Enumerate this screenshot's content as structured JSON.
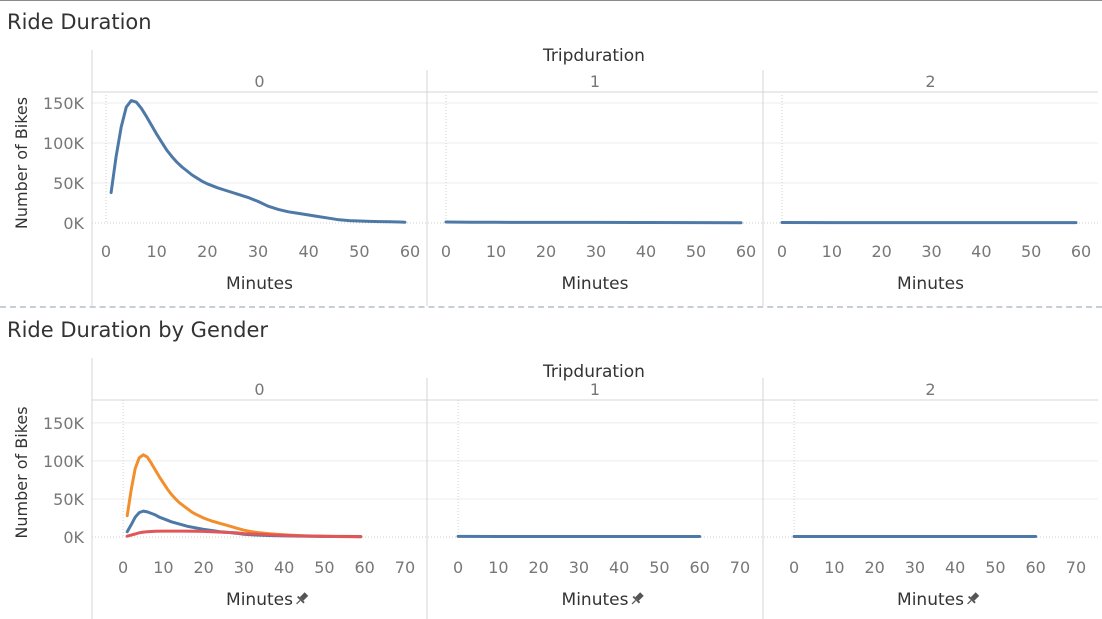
{
  "dashboard": {
    "sections": [
      {
        "title": "Ride Duration",
        "header_label": "Tripduration",
        "panel_labels": [
          "0",
          "1",
          "2"
        ],
        "xlabel": "Minutes",
        "ylabel": "Number of Bikes"
      },
      {
        "title": "Ride Duration by Gender",
        "header_label": "Tripduration",
        "panel_labels": [
          "0",
          "1",
          "2"
        ],
        "xlabel": "Minutes",
        "ylabel": "Number of Bikes",
        "pin_icon": "pin-icon"
      }
    ]
  },
  "chart_data": [
    {
      "type": "line",
      "title": "Ride Duration",
      "xlabel": "Minutes",
      "ylabel": "Number of Bikes",
      "facet_label": "Tripduration",
      "xlim": [
        0,
        60
      ],
      "ylim": [
        0,
        160000
      ],
      "x_ticks": [
        0,
        10,
        20,
        30,
        40,
        50,
        60
      ],
      "x_tick_labels": [
        "0",
        "10",
        "20",
        "30",
        "40",
        "50",
        "60"
      ],
      "y_ticks": [
        0,
        50000,
        100000,
        150000
      ],
      "y_tick_labels": [
        "0K",
        "50K",
        "100K",
        "150K"
      ],
      "grid": true,
      "facets": [
        {
          "label": "0",
          "series": [
            {
              "color": "#4e79a7",
              "x": [
                1,
                2,
                3,
                4,
                5,
                6,
                7,
                8,
                9,
                10,
                11,
                12,
                13,
                14,
                15,
                16,
                17,
                18,
                19,
                20,
                22,
                24,
                26,
                28,
                30,
                32,
                34,
                36,
                38,
                40,
                42,
                44,
                46,
                48,
                50,
                52,
                54,
                56,
                58,
                59
              ],
              "y": [
                38000,
                83000,
                120000,
                145000,
                153000,
                151000,
                143000,
                133000,
                122000,
                111000,
                101000,
                91000,
                83000,
                76000,
                70000,
                65000,
                60000,
                56000,
                52000,
                49000,
                44000,
                40000,
                36000,
                32000,
                27000,
                21000,
                17000,
                14000,
                12000,
                10000,
                8000,
                6000,
                4000,
                3000,
                2500,
                2000,
                1800,
                1500,
                1200,
                1000
              ]
            }
          ]
        },
        {
          "label": "1",
          "series": [
            {
              "color": "#4e79a7",
              "x": [
                0,
                5,
                10,
                20,
                30,
                40,
                50,
                59
              ],
              "y": [
                1200,
                1000,
                900,
                800,
                700,
                600,
                500,
                400
              ]
            }
          ]
        },
        {
          "label": "2",
          "series": [
            {
              "color": "#4e79a7",
              "x": [
                0,
                10,
                20,
                30,
                40,
                50,
                59
              ],
              "y": [
                600,
                500,
                500,
                500,
                500,
                500,
                500
              ]
            }
          ]
        }
      ]
    },
    {
      "type": "line",
      "title": "Ride Duration by Gender",
      "xlabel": "Minutes",
      "ylabel": "Number of Bikes",
      "facet_label": "Tripduration",
      "xlim": [
        -5,
        72
      ],
      "ylim": [
        0,
        180000
      ],
      "x_ticks": [
        0,
        10,
        20,
        30,
        40,
        50,
        60,
        70
      ],
      "x_tick_labels": [
        "0",
        "10",
        "20",
        "30",
        "40",
        "50",
        "60",
        "70"
      ],
      "y_ticks": [
        0,
        50000,
        100000,
        150000
      ],
      "y_tick_labels": [
        "0K",
        "50K",
        "100K",
        "150K"
      ],
      "grid": true,
      "facets": [
        {
          "label": "0",
          "series": [
            {
              "color": "#f28e2b",
              "x": [
                1,
                2,
                3,
                4,
                5,
                6,
                7,
                8,
                9,
                10,
                11,
                12,
                13,
                14,
                15,
                16,
                17,
                18,
                20,
                22,
                24,
                26,
                28,
                30,
                32,
                34,
                36,
                38,
                40,
                42,
                44,
                46,
                48,
                50,
                55,
                59
              ],
              "y": [
                28000,
                62000,
                90000,
                104000,
                108000,
                105000,
                97000,
                88000,
                79000,
                71000,
                63000,
                56000,
                50000,
                45000,
                41000,
                37000,
                33000,
                30000,
                25000,
                21000,
                18000,
                15000,
                12000,
                9000,
                7000,
                5500,
                4500,
                3500,
                3000,
                2400,
                1900,
                1500,
                1200,
                1000,
                800,
                700
              ]
            },
            {
              "color": "#4e79a7",
              "x": [
                1,
                2,
                3,
                4,
                5,
                6,
                7,
                8,
                9,
                10,
                12,
                14,
                16,
                18,
                20,
                22,
                24,
                26,
                28,
                30,
                33,
                36,
                40,
                44,
                48,
                52,
                56,
                59
              ],
              "y": [
                7000,
                16000,
                26000,
                32000,
                34000,
                33000,
                31000,
                29000,
                26000,
                24000,
                20000,
                17000,
                14000,
                12000,
                10000,
                8500,
                7000,
                6000,
                5000,
                3500,
                2600,
                2000,
                1500,
                1200,
                900,
                700,
                600,
                500
              ]
            },
            {
              "color": "#e15759",
              "x": [
                1,
                2,
                3,
                4,
                5,
                6,
                8,
                10,
                12,
                15,
                18,
                20,
                24,
                28,
                30,
                34,
                38,
                42,
                46,
                50,
                55,
                59
              ],
              "y": [
                1000,
                2500,
                4000,
                5500,
                6500,
                7000,
                7500,
                7700,
                7800,
                7700,
                7500,
                7300,
                6500,
                5500,
                4500,
                3500,
                2500,
                1800,
                1200,
                800,
                500,
                400
              ]
            }
          ]
        },
        {
          "label": "1",
          "series": [
            {
              "color": "#4e79a7",
              "x": [
                0,
                10,
                20,
                30,
                40,
                50,
                60
              ],
              "y": [
                800,
                700,
                700,
                700,
                700,
                700,
                700
              ]
            }
          ]
        },
        {
          "label": "2",
          "series": [
            {
              "color": "#4e79a7",
              "x": [
                0,
                10,
                20,
                30,
                40,
                50,
                60
              ],
              "y": [
                600,
                600,
                600,
                600,
                600,
                600,
                600
              ]
            }
          ]
        }
      ]
    }
  ]
}
